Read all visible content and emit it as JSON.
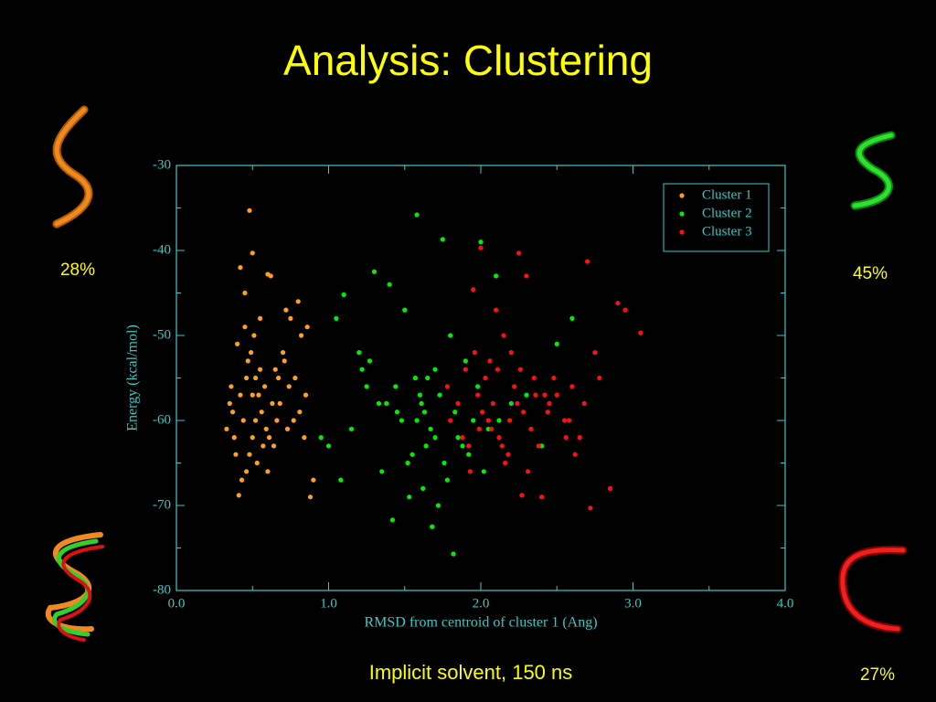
{
  "title": "Analysis: Clustering",
  "caption": "Implicit solvent, 150 ns",
  "cluster_labels": [
    "28%",
    "45%",
    "27%"
  ],
  "chart_data": {
    "type": "scatter",
    "xlabel": "RMSD from centroid of cluster 1 (Ang)",
    "ylabel": "Energy (kcal/mol)",
    "xlim": [
      0,
      4
    ],
    "ylim": [
      -80,
      -30
    ],
    "xticks": [
      {
        "value": 0,
        "label": "0.0"
      },
      {
        "value": 1,
        "label": "1.0"
      },
      {
        "value": 2,
        "label": "2.0"
      },
      {
        "value": 3,
        "label": "3.0"
      },
      {
        "value": 4,
        "label": "4.0"
      }
    ],
    "yticks": [
      -30,
      -40,
      -50,
      -60,
      -70,
      -80
    ],
    "legend": "upper right",
    "axis_color": "#3cc8c8",
    "series": [
      {
        "name": "Cluster 1",
        "color": "#ffa020",
        "x": [
          0.48,
          0.5,
          0.42,
          0.45,
          0.6,
          0.62,
          0.55,
          0.4,
          0.47,
          0.52,
          0.35,
          0.33,
          0.38,
          0.44,
          0.5,
          0.58,
          0.65,
          0.7,
          0.72,
          0.75,
          0.8,
          0.82,
          0.78,
          0.68,
          0.66,
          0.57,
          0.53,
          0.46,
          0.43,
          0.41,
          0.39,
          0.37,
          0.36,
          0.49,
          0.51,
          0.54,
          0.56,
          0.59,
          0.61,
          0.63,
          0.67,
          0.71,
          0.74,
          0.77,
          0.85,
          0.88,
          0.9,
          0.84,
          0.45,
          0.48,
          0.52,
          0.55,
          0.42,
          0.6,
          0.64,
          0.73,
          0.81,
          0.86,
          0.46,
          0.5
        ],
        "values": [
          -35.3,
          -40.3,
          -42,
          -49,
          -42.8,
          -43,
          -48,
          -51,
          -53,
          -55,
          -58,
          -61,
          -62,
          -60,
          -57,
          -56,
          -54,
          -52,
          -47,
          -48,
          -46,
          -50,
          -55,
          -58,
          -60,
          -63,
          -65,
          -66,
          -67,
          -68.8,
          -64,
          -59,
          -56,
          -52,
          -50,
          -57,
          -59,
          -61,
          -62,
          -58,
          -55,
          -53,
          -56,
          -60,
          -57,
          -69,
          -67,
          -62,
          -45,
          -64,
          -60,
          -54,
          -57,
          -66,
          -63,
          -61,
          -59,
          -49,
          -55,
          -62
        ]
      },
      {
        "name": "Cluster 2",
        "color": "#00ee00",
        "x": [
          1.58,
          1.75,
          1.3,
          1.4,
          1.1,
          1.05,
          1.2,
          1.5,
          1.65,
          1.8,
          1.9,
          2.0,
          2.1,
          2.2,
          1.95,
          1.7,
          1.6,
          1.55,
          1.45,
          1.35,
          1.25,
          1.15,
          1.0,
          0.95,
          1.08,
          1.22,
          1.38,
          1.52,
          1.62,
          1.72,
          1.82,
          1.92,
          2.02,
          2.12,
          2.3,
          2.4,
          2.5,
          2.6,
          1.68,
          1.78,
          1.48,
          1.42,
          1.33,
          1.27,
          1.57,
          1.63,
          1.67,
          1.73,
          1.85,
          1.88,
          1.98,
          2.05,
          1.53,
          1.44,
          1.7,
          1.64,
          1.58,
          1.76,
          1.83,
          1.61
        ],
        "values": [
          -35.8,
          -38.7,
          -42.5,
          -44,
          -45.2,
          -48,
          -52,
          -47,
          -55,
          -50,
          -53,
          -39,
          -43,
          -58,
          -60,
          -62,
          -57,
          -64,
          -59,
          -66,
          -56,
          -61,
          -63,
          -62,
          -67,
          -54,
          -58,
          -65,
          -68,
          -70,
          -75.7,
          -64,
          -66,
          -60,
          -57,
          -63,
          -51,
          -48,
          -72.5,
          -67,
          -60,
          -71.7,
          -58,
          -53,
          -55,
          -59,
          -61,
          -57,
          -62,
          -63,
          -56,
          -61,
          -69,
          -56,
          -54,
          -63,
          -60,
          -65,
          -59,
          -58
        ]
      },
      {
        "name": "Cluster 3",
        "color": "#ff1010",
        "x": [
          2.0,
          2.25,
          2.3,
          2.7,
          2.9,
          3.05,
          2.95,
          1.95,
          2.1,
          2.15,
          2.2,
          2.35,
          2.45,
          2.55,
          2.6,
          2.65,
          2.75,
          2.85,
          2.72,
          1.85,
          1.9,
          1.98,
          2.05,
          2.12,
          2.18,
          2.22,
          2.28,
          2.33,
          2.38,
          2.42,
          1.88,
          1.93,
          2.03,
          2.08,
          2.16,
          2.26,
          2.5,
          2.58,
          2.62,
          1.8,
          1.78,
          1.96,
          2.01,
          2.07,
          2.14,
          2.24,
          2.31,
          2.4,
          2.48,
          2.56,
          2.68,
          2.78,
          1.92,
          2.06,
          2.19,
          2.36,
          2.44,
          2.27,
          2.11,
          1.99
        ],
        "values": [
          -39.7,
          -40.3,
          -43,
          -41.3,
          -46.2,
          -49.7,
          -47,
          -44.6,
          -47,
          -50,
          -52,
          -55,
          -58,
          -60,
          -56,
          -62,
          -52,
          -68,
          -70.3,
          -58,
          -54,
          -57,
          -60,
          -62,
          -64,
          -56,
          -59,
          -61,
          -63,
          -57,
          -62,
          -66,
          -55,
          -58,
          -65,
          -54,
          -57,
          -60,
          -64,
          -60,
          -56,
          -52,
          -59,
          -61,
          -63,
          -58,
          -66,
          -69,
          -55,
          -62,
          -58,
          -55,
          -63,
          -53,
          -60,
          -57,
          -59,
          -68.8,
          -54,
          -61
        ]
      }
    ]
  }
}
